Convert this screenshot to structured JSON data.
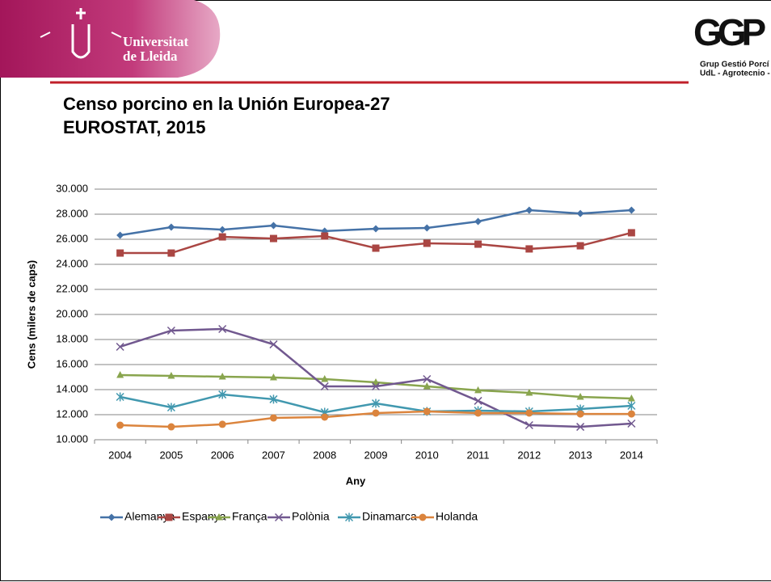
{
  "header": {
    "university": [
      "Universitat",
      "de Lleida"
    ],
    "logo": "GGP",
    "logo_text": [
      "Grup Gestió Porcí",
      "UdL - Agrotecnio - CE"
    ]
  },
  "chart_data": {
    "type": "line",
    "title": [
      "Censo porcino en la Unión Europea-27",
      "EUROSTAT, 2015"
    ],
    "xlabel": "Any",
    "ylabel": "Cens (milers de caps)",
    "categories": [
      "2004",
      "2005",
      "2006",
      "2007",
      "2008",
      "2009",
      "2010",
      "2011",
      "2012",
      "2013",
      "2014"
    ],
    "ylim": [
      10000,
      30000
    ],
    "yticks": [
      {
        "value": 10000,
        "label": "10.000"
      },
      {
        "value": 12000,
        "label": "12.000"
      },
      {
        "value": 14000,
        "label": "14.000"
      },
      {
        "value": 16000,
        "label": "16.000"
      },
      {
        "value": 18000,
        "label": "18.000"
      },
      {
        "value": 20000,
        "label": "20.000"
      },
      {
        "value": 22000,
        "label": "22.000"
      },
      {
        "value": 24000,
        "label": "24.000"
      },
      {
        "value": 26000,
        "label": "26.000"
      },
      {
        "value": 28000,
        "label": "28.000"
      },
      {
        "value": 30000,
        "label": "30.000"
      }
    ],
    "grid": true,
    "legend": "bottom",
    "series": [
      {
        "name": "Alemanya",
        "color": "#4572a7",
        "marker": "diamond",
        "values": [
          26320,
          26970,
          26770,
          27100,
          26650,
          26840,
          26900,
          27420,
          28320,
          28060,
          28320
        ]
      },
      {
        "name": "Espanya",
        "color": "#aa4643",
        "marker": "square",
        "values": [
          24900,
          24900,
          26190,
          26060,
          26260,
          25290,
          25680,
          25610,
          25230,
          25480,
          26520
        ]
      },
      {
        "name": "França",
        "color": "#89a54e",
        "marker": "triangle",
        "values": [
          15160,
          15100,
          15030,
          14970,
          14840,
          14580,
          14260,
          13940,
          13740,
          13420,
          13290
        ]
      },
      {
        "name": "Polònia",
        "color": "#71588f",
        "marker": "x",
        "values": [
          17420,
          18710,
          18840,
          17610,
          14260,
          14260,
          14840,
          13100,
          11160,
          11030,
          11290
        ]
      },
      {
        "name": "Dinamarca",
        "color": "#4198af",
        "marker": "star",
        "values": [
          13420,
          12580,
          13610,
          13230,
          12190,
          12900,
          12260,
          12320,
          12260,
          12450,
          12710
        ]
      },
      {
        "name": "Holanda",
        "color": "#db843d",
        "marker": "circle",
        "values": [
          11160,
          11030,
          11230,
          11740,
          11810,
          12130,
          12260,
          12130,
          12130,
          12060,
          12060
        ]
      }
    ]
  }
}
